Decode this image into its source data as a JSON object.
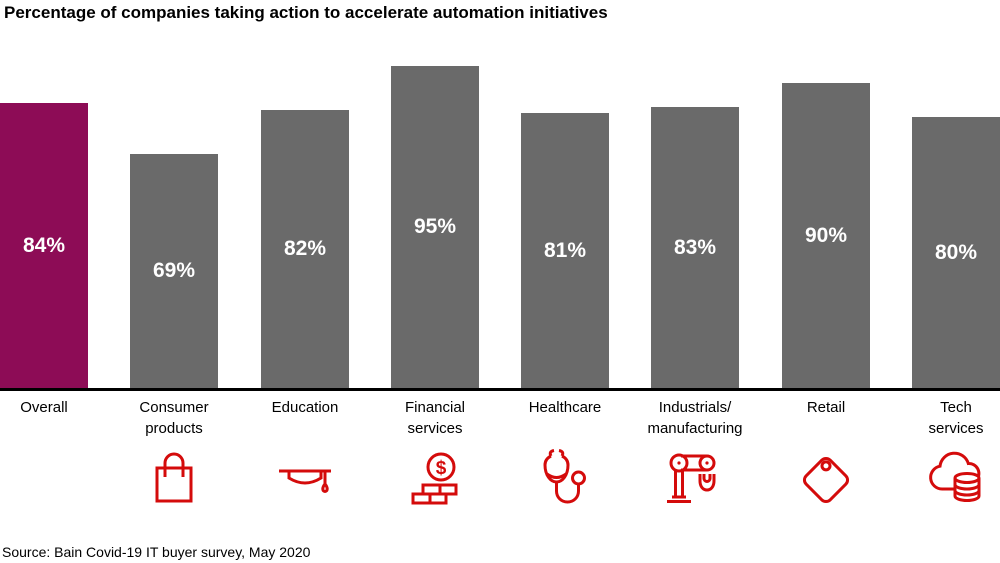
{
  "title": "Percentage of companies taking action to accelerate automation initiatives",
  "source": "Source: Bain Covid-19 IT buyer survey, May 2020",
  "colors": {
    "highlight": "#8d0c56",
    "bar": "#6a6a6a",
    "icon": "#d40b0b",
    "axis": "#000000",
    "value_text": "#ffffff",
    "text": "#000000"
  },
  "chart_data": {
    "type": "bar",
    "title": "Percentage of companies taking action to accelerate automation initiatives",
    "categories": [
      "Overall",
      "Consumer products",
      "Education",
      "Financial services",
      "Healthcare",
      "Industrials/manufacturing",
      "Retail",
      "Tech services"
    ],
    "category_lines": [
      [
        "Overall"
      ],
      [
        "Consumer",
        "products"
      ],
      [
        "Education"
      ],
      [
        "Financial",
        "services"
      ],
      [
        "Healthcare"
      ],
      [
        "Industrials/",
        "manufacturing"
      ],
      [
        "Retail"
      ],
      [
        "Tech",
        "services"
      ]
    ],
    "values": [
      84,
      69,
      82,
      95,
      81,
      83,
      90,
      80
    ],
    "value_labels": [
      "84%",
      "69%",
      "82%",
      "95%",
      "81%",
      "83%",
      "90%",
      "80%"
    ],
    "unit": "%",
    "xlabel": "",
    "ylabel": "",
    "ylim": [
      0,
      100
    ],
    "grid": false,
    "legend": false,
    "highlight_index": 0,
    "highlight_category": "Overall",
    "icons": [
      null,
      "shopping-bag-icon",
      "graduation-cap-icon",
      "coins-dollar-icon",
      "stethoscope-icon",
      "robot-arm-icon",
      "price-tag-icon",
      "cloud-database-icon"
    ]
  }
}
